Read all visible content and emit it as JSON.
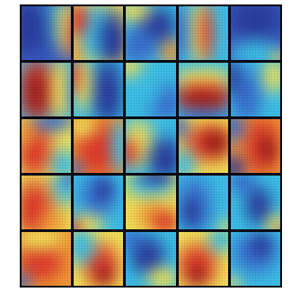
{
  "figure": {
    "rows": 5,
    "cols": 5,
    "palette": {
      "dark_blue": "#2a3d9e",
      "blue": "#3a6fd0",
      "cyan": "#3cc0e8",
      "yellow": "#f3e35a",
      "orange": "#f29b38",
      "red": "#e03a2a",
      "dark_red": "#9c1f1a",
      "grid_line": "#0a0a14"
    },
    "tiles": [
      {
        "bg": "#3a5ec4",
        "blobs": [
          [
            "#3cc0e8",
            70,
            30,
            55,
            45
          ],
          [
            "#f3e35a",
            85,
            40,
            25,
            60
          ],
          [
            "#e03a2a",
            95,
            50,
            15,
            50
          ],
          [
            "#2a3d9e",
            20,
            40,
            55,
            60
          ]
        ]
      },
      {
        "bg": "#f3e35a",
        "blobs": [
          [
            "#3cc0e8",
            45,
            50,
            40,
            70
          ],
          [
            "#2a3d9e",
            75,
            60,
            35,
            60
          ],
          [
            "#e03a2a",
            15,
            30,
            25,
            35
          ],
          [
            "#f29b38",
            10,
            80,
            20,
            30
          ]
        ]
      },
      {
        "bg": "#3cc0e8",
        "blobs": [
          [
            "#2a3d9e",
            60,
            40,
            45,
            40
          ],
          [
            "#f3e35a",
            20,
            15,
            40,
            25
          ],
          [
            "#f29b38",
            85,
            80,
            25,
            30
          ],
          [
            "#3a6fd0",
            30,
            70,
            40,
            40
          ]
        ]
      },
      {
        "bg": "#3cc0e8",
        "blobs": [
          [
            "#f3e35a",
            45,
            50,
            25,
            70
          ],
          [
            "#e03a2a",
            55,
            50,
            15,
            60
          ],
          [
            "#3a6fd0",
            10,
            50,
            25,
            60
          ],
          [
            "#3cc0e8",
            90,
            50,
            25,
            60
          ]
        ]
      },
      {
        "bg": "#3a5ec4",
        "blobs": [
          [
            "#2a3d9e",
            50,
            30,
            60,
            45
          ],
          [
            "#3cc0e8",
            50,
            85,
            60,
            35
          ],
          [
            "#f3e35a",
            90,
            90,
            20,
            20
          ]
        ]
      },
      {
        "bg": "#3cc0e8",
        "blobs": [
          [
            "#e03a2a",
            35,
            50,
            45,
            70
          ],
          [
            "#9c1f1a",
            35,
            55,
            25,
            45
          ],
          [
            "#f3e35a",
            75,
            50,
            25,
            70
          ],
          [
            "#3a6fd0",
            95,
            50,
            15,
            60
          ]
        ]
      },
      {
        "bg": "#3cc0e8",
        "blobs": [
          [
            "#2a3d9e",
            65,
            55,
            35,
            75
          ],
          [
            "#f3e35a",
            25,
            40,
            20,
            60
          ],
          [
            "#e03a2a",
            10,
            30,
            15,
            40
          ]
        ]
      },
      {
        "bg": "#3cc0e8",
        "blobs": [
          [
            "#f3e35a",
            15,
            15,
            35,
            30
          ],
          [
            "#3a6fd0",
            75,
            70,
            45,
            40
          ],
          [
            "#3cc0e8",
            40,
            50,
            40,
            40
          ]
        ]
      },
      {
        "bg": "#3cc0e8",
        "blobs": [
          [
            "#f3e35a",
            50,
            35,
            70,
            25
          ],
          [
            "#e03a2a",
            50,
            60,
            70,
            30
          ],
          [
            "#9c1f1a",
            50,
            65,
            55,
            18
          ],
          [
            "#3a6fd0",
            50,
            95,
            70,
            20
          ]
        ]
      },
      {
        "bg": "#3cc0e8",
        "blobs": [
          [
            "#3a6fd0",
            35,
            60,
            35,
            60
          ],
          [
            "#f3e35a",
            80,
            30,
            25,
            35
          ],
          [
            "#2a3d9e",
            10,
            30,
            20,
            40
          ]
        ]
      },
      {
        "bg": "#f3e35a",
        "blobs": [
          [
            "#e03a2a",
            30,
            55,
            40,
            60
          ],
          [
            "#3a6fd0",
            60,
            10,
            50,
            25
          ],
          [
            "#3cc0e8",
            80,
            80,
            30,
            35
          ],
          [
            "#f29b38",
            15,
            30,
            25,
            30
          ]
        ]
      },
      {
        "bg": "#f29b38",
        "blobs": [
          [
            "#e03a2a",
            50,
            55,
            50,
            60
          ],
          [
            "#f3e35a",
            25,
            20,
            30,
            25
          ],
          [
            "#3cc0e8",
            85,
            50,
            20,
            60
          ],
          [
            "#3a6fd0",
            10,
            85,
            20,
            20
          ]
        ]
      },
      {
        "bg": "#3cc0e8",
        "blobs": [
          [
            "#f3e35a",
            30,
            45,
            35,
            50
          ],
          [
            "#e03a2a",
            15,
            60,
            20,
            30
          ],
          [
            "#2a3d9e",
            75,
            70,
            40,
            45
          ]
        ]
      },
      {
        "bg": "#f3e35a",
        "blobs": [
          [
            "#e03a2a",
            60,
            45,
            55,
            40
          ],
          [
            "#9c1f1a",
            70,
            45,
            30,
            25
          ],
          [
            "#3cc0e8",
            15,
            80,
            30,
            35
          ],
          [
            "#3a6fd0",
            10,
            20,
            20,
            30
          ]
        ]
      },
      {
        "bg": "#f29b38",
        "blobs": [
          [
            "#e03a2a",
            60,
            50,
            40,
            60
          ],
          [
            "#9c1f1a",
            70,
            55,
            20,
            30
          ],
          [
            "#3a6fd0",
            10,
            20,
            30,
            35
          ],
          [
            "#2a3d9e",
            10,
            85,
            30,
            30
          ]
        ]
      },
      {
        "bg": "#f3e35a",
        "blobs": [
          [
            "#e03a2a",
            30,
            60,
            45,
            60
          ],
          [
            "#3cc0e8",
            85,
            25,
            35,
            40
          ],
          [
            "#f29b38",
            60,
            80,
            30,
            30
          ],
          [
            "#3a6fd0",
            90,
            10,
            20,
            25
          ]
        ]
      },
      {
        "bg": "#3cc0e8",
        "blobs": [
          [
            "#3a6fd0",
            50,
            40,
            40,
            45
          ],
          [
            "#f3e35a",
            30,
            85,
            40,
            25
          ],
          [
            "#e03a2a",
            10,
            90,
            20,
            20
          ],
          [
            "#2a3d9e",
            60,
            30,
            20,
            25
          ]
        ]
      },
      {
        "bg": "#f3e35a",
        "blobs": [
          [
            "#3cc0e8",
            50,
            20,
            60,
            30
          ],
          [
            "#2a3d9e",
            60,
            10,
            40,
            20
          ],
          [
            "#f29b38",
            55,
            70,
            40,
            30
          ],
          [
            "#e03a2a",
            75,
            80,
            30,
            25
          ]
        ]
      },
      {
        "bg": "#3cc0e8",
        "blobs": [
          [
            "#3a6fd0",
            35,
            55,
            40,
            60
          ],
          [
            "#2a3d9e",
            30,
            65,
            20,
            30
          ],
          [
            "#f3e35a",
            90,
            90,
            20,
            20
          ]
        ]
      },
      {
        "bg": "#3cc0e8",
        "blobs": [
          [
            "#2a3d9e",
            55,
            55,
            30,
            40
          ],
          [
            "#f3e35a",
            85,
            85,
            25,
            25
          ],
          [
            "#e03a2a",
            95,
            95,
            15,
            15
          ],
          [
            "#3a6fd0",
            30,
            20,
            30,
            25
          ]
        ]
      },
      {
        "bg": "#f29b38",
        "blobs": [
          [
            "#e03a2a",
            40,
            55,
            50,
            40
          ],
          [
            "#f3e35a",
            40,
            20,
            50,
            25
          ],
          [
            "#3a6fd0",
            10,
            85,
            20,
            20
          ]
        ]
      },
      {
        "bg": "#f3e35a",
        "blobs": [
          [
            "#e03a2a",
            55,
            60,
            40,
            45
          ],
          [
            "#3cc0e8",
            20,
            30,
            35,
            40
          ],
          [
            "#9c1f1a",
            60,
            75,
            20,
            20
          ]
        ]
      },
      {
        "bg": "#3cc0e8",
        "blobs": [
          [
            "#2a3d9e",
            45,
            45,
            40,
            40
          ],
          [
            "#f3e35a",
            70,
            80,
            35,
            25
          ],
          [
            "#3a6fd0",
            20,
            20,
            25,
            25
          ]
        ]
      },
      {
        "bg": "#f3e35a",
        "blobs": [
          [
            "#e03a2a",
            40,
            60,
            45,
            45
          ],
          [
            "#9c1f1a",
            40,
            75,
            20,
            20
          ],
          [
            "#3cc0e8",
            80,
            20,
            30,
            30
          ]
        ]
      },
      {
        "bg": "#3cc0e8",
        "blobs": [
          [
            "#3a6fd0",
            50,
            40,
            50,
            45
          ],
          [
            "#2a3d9e",
            60,
            30,
            25,
            25
          ],
          [
            "#f3e35a",
            10,
            90,
            20,
            20
          ]
        ]
      }
    ]
  }
}
